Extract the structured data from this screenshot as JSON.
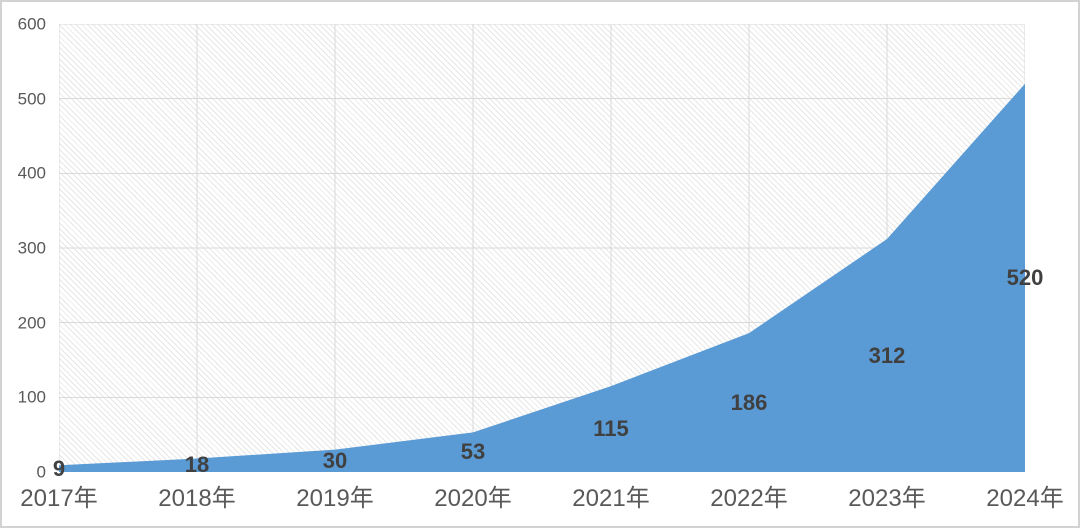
{
  "chart_data": {
    "type": "area",
    "title": "",
    "xlabel": "",
    "ylabel": "",
    "categories": [
      "2017年",
      "2018年",
      "2019年",
      "2020年",
      "2021年",
      "2022年",
      "2023年",
      "2024年"
    ],
    "values": [
      9,
      18,
      30,
      53,
      115,
      186,
      312,
      520
    ],
    "yticks": [
      0,
      100,
      200,
      300,
      400,
      500,
      600
    ],
    "ylim": [
      0,
      600
    ],
    "grid": true,
    "legend_position": "none",
    "data_labels_shown": true,
    "colors": {
      "series_fill": "#5B9BD5",
      "data_label_text": "#404040",
      "axis_tick_text": "#595959",
      "gridline": "#d9d9d9",
      "plot_hatch": "#e7e7e7",
      "background": "#ffffff"
    }
  }
}
